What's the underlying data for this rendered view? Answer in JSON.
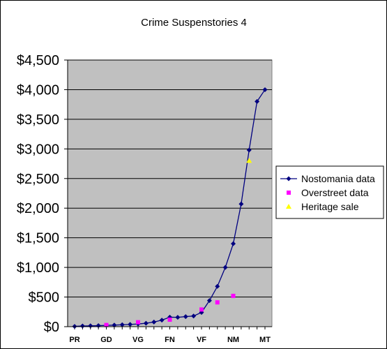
{
  "chart_data": {
    "type": "line",
    "title": "Crime Suspenstories 4",
    "xlabel": "",
    "ylabel": "",
    "ylim": [
      0,
      4500
    ],
    "y_ticks": [
      0,
      500,
      1000,
      1500,
      2000,
      2500,
      3000,
      3500,
      4000,
      4500
    ],
    "y_tick_labels": [
      "$0",
      "$500",
      "$1,000",
      "$1,500",
      "$2,000",
      "$2,500",
      "$3,000",
      "$3,500",
      "$4,000",
      "$4,500"
    ],
    "x_tick_labels": [
      "PR",
      "GD",
      "VG",
      "FN",
      "VF",
      "NM",
      "MT"
    ],
    "grid": true,
    "legend_position": "right",
    "plot_background": "#c0c0c0",
    "series": [
      {
        "name": "Nostomania data",
        "color": "#000080",
        "marker": "diamond",
        "line": true,
        "values": [
          5,
          12,
          14,
          17,
          22,
          26,
          32,
          38,
          45,
          58,
          78,
          110,
          160,
          158,
          170,
          180,
          240,
          440,
          680,
          1000,
          1400,
          2070,
          2980,
          3800,
          4000
        ]
      },
      {
        "name": "Overstreet data",
        "color": "#ff00ff",
        "marker": "square",
        "line": false,
        "points": [
          [
            4,
            28
          ],
          [
            8,
            75
          ],
          [
            12,
            118
          ],
          [
            16,
            290
          ],
          [
            18,
            410
          ],
          [
            20,
            520
          ]
        ]
      },
      {
        "name": "Heritage sale",
        "color": "#ffff00",
        "marker": "triangle",
        "line": false,
        "points": [
          [
            22,
            2800
          ]
        ]
      }
    ]
  }
}
